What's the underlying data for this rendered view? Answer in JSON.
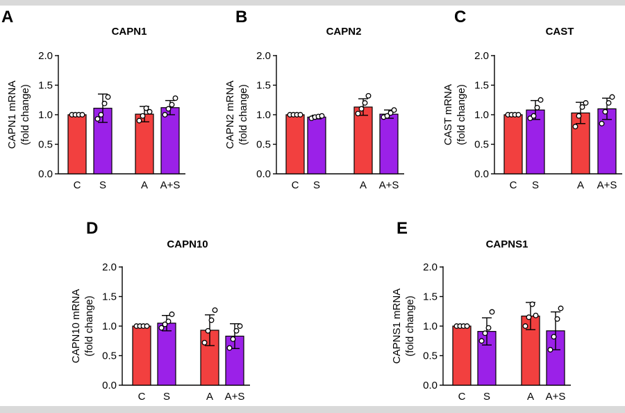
{
  "colors": {
    "control": "#f2403f",
    "treated": "#9b21e8",
    "band": "#d9d9d9"
  },
  "chart_data": [
    {
      "type": "bar",
      "panel_label": "A",
      "title": "CAPN1",
      "ylabel_line1": "CAPN1 mRNA",
      "ylabel_line2": "(fold change)",
      "categories": [
        "C",
        "S",
        "A",
        "A+S"
      ],
      "values": [
        1.0,
        1.11,
        1.01,
        1.12
      ],
      "error_sd": [
        0.0,
        0.24,
        0.13,
        0.12
      ],
      "points": [
        [
          1.0,
          1.0,
          1.0,
          1.0
        ],
        [
          0.93,
          1.0,
          1.19,
          1.3
        ],
        [
          0.9,
          0.98,
          1.11,
          1.05
        ],
        [
          1.0,
          1.1,
          1.17,
          1.28
        ]
      ],
      "ylim": [
        0,
        2.0
      ],
      "yticks": [
        "0.0",
        "0.5",
        "1.0",
        "1.5",
        "2.0"
      ]
    },
    {
      "type": "bar",
      "panel_label": "B",
      "title": "CAPN2",
      "ylabel_line1": "CAPN2 mRNA",
      "ylabel_line2": "(fold change)",
      "categories": [
        "C",
        "S",
        "A",
        "A+S"
      ],
      "values": [
        1.0,
        0.96,
        1.13,
        1.01
      ],
      "error_sd": [
        0.0,
        0.03,
        0.14,
        0.07
      ],
      "points": [
        [
          1.0,
          1.0,
          1.0,
          1.0
        ],
        [
          0.94,
          0.96,
          0.97,
          0.98
        ],
        [
          1.02,
          1.1,
          1.2,
          1.32
        ],
        [
          0.96,
          0.98,
          1.03,
          1.08
        ]
      ],
      "ylim": [
        0,
        2.0
      ],
      "yticks": [
        "0.0",
        "0.5",
        "1.0",
        "1.5",
        "2.0"
      ]
    },
    {
      "type": "bar",
      "panel_label": "C",
      "title": "CAST",
      "ylabel_line1": "CAST mRNA",
      "ylabel_line2": "(fold change)",
      "categories": [
        "C",
        "S",
        "A",
        "A+S"
      ],
      "values": [
        1.0,
        1.08,
        1.03,
        1.1
      ],
      "error_sd": [
        0.0,
        0.16,
        0.18,
        0.18
      ],
      "points": [
        [
          1.0,
          1.0,
          1.0,
          1.0
        ],
        [
          0.94,
          0.98,
          1.12,
          1.25
        ],
        [
          0.8,
          0.98,
          1.13,
          1.2
        ],
        [
          0.85,
          1.05,
          1.2,
          1.3
        ]
      ],
      "ylim": [
        0,
        2.0
      ],
      "yticks": [
        "0.0",
        "0.5",
        "1.0",
        "1.5",
        "2.0"
      ]
    },
    {
      "type": "bar",
      "panel_label": "D",
      "title": "CAPN10",
      "ylabel_line1": "CAPN10 mRNA",
      "ylabel_line2": "(fold change)",
      "categories": [
        "C",
        "S",
        "A",
        "A+S"
      ],
      "values": [
        1.0,
        1.05,
        0.93,
        0.83
      ],
      "error_sd": [
        0.0,
        0.13,
        0.26,
        0.21
      ],
      "points": [
        [
          1.0,
          1.0,
          1.0,
          1.0
        ],
        [
          0.97,
          1.03,
          1.08,
          1.2
        ],
        [
          0.72,
          0.92,
          1.1,
          1.27
        ],
        [
          0.63,
          0.78,
          0.92,
          1.0
        ]
      ],
      "ylim": [
        0,
        2.0
      ],
      "yticks": [
        "0.0",
        "0.5",
        "1.0",
        "1.5",
        "2.0"
      ]
    },
    {
      "type": "bar",
      "panel_label": "E",
      "title": "CAPNS1",
      "ylabel_line1": "CAPNS1 mRNA",
      "ylabel_line2": "(fold change)",
      "categories": [
        "C",
        "S",
        "A",
        "A+S"
      ],
      "values": [
        1.0,
        0.91,
        1.17,
        0.92
      ],
      "error_sd": [
        0.0,
        0.23,
        0.23,
        0.32
      ],
      "points": [
        [
          1.0,
          1.0,
          1.0,
          1.0
        ],
        [
          0.75,
          0.88,
          0.97,
          1.24
        ],
        [
          1.0,
          1.15,
          1.37,
          1.18
        ],
        [
          0.6,
          0.82,
          1.12,
          1.3
        ]
      ],
      "ylim": [
        0,
        2.0
      ],
      "yticks": [
        "0.0",
        "0.5",
        "1.0",
        "1.5",
        "2.0"
      ]
    }
  ]
}
